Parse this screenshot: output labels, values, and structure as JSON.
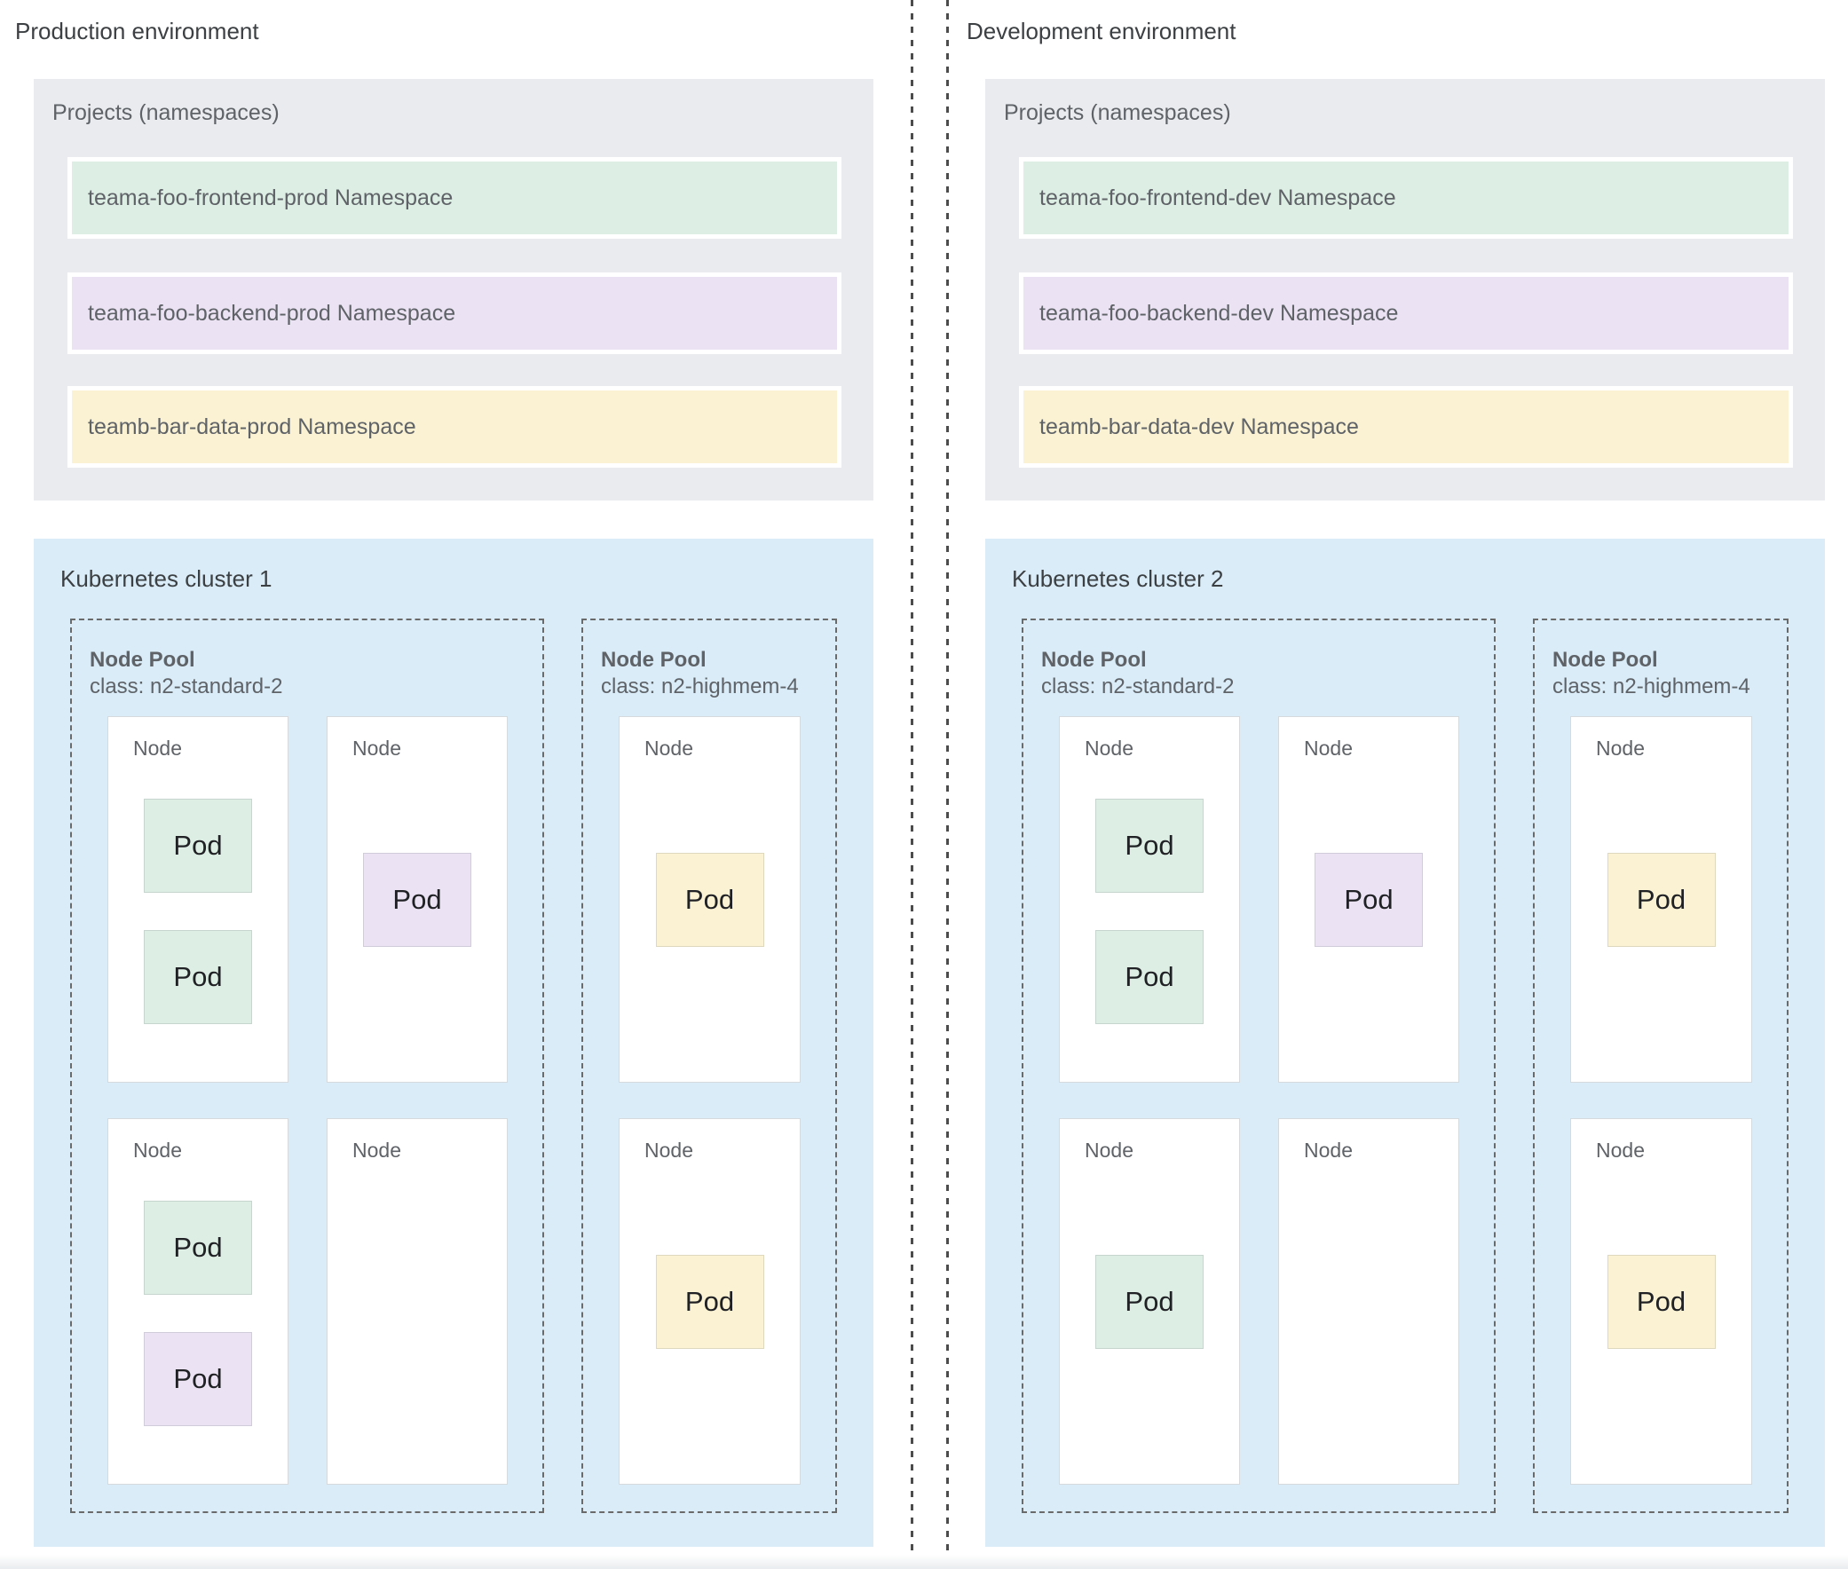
{
  "colors": {
    "projects_box": "#e9ebee",
    "cluster_box": "#d9ecf8",
    "namespace_green": "#ddeee4",
    "namespace_purple": "#ebe3f3",
    "namespace_yellow": "#faf2d2",
    "label_text": "#5f6368",
    "title_text": "#3c4043"
  },
  "environments": [
    {
      "title": "Production environment",
      "projects": {
        "title": "Projects (namespaces)",
        "namespaces": [
          {
            "label": "teama-foo-frontend-prod Namespace",
            "color": "green"
          },
          {
            "label": "teama-foo-backend-prod Namespace",
            "color": "purple"
          },
          {
            "label": "teamb-bar-data-prod Namespace",
            "color": "yellow"
          }
        ]
      },
      "cluster": {
        "title": "Kubernetes cluster 1",
        "node_pools": [
          {
            "name": "Node Pool",
            "class_line": "class: n2-standard-2",
            "nodes": [
              {
                "label": "Node",
                "pods": [
                  {
                    "label": "Pod",
                    "color": "green"
                  },
                  {
                    "label": "Pod",
                    "color": "green"
                  }
                ]
              },
              {
                "label": "Node",
                "pods": [
                  {
                    "label": "Pod",
                    "color": "purple"
                  }
                ]
              },
              {
                "label": "Node",
                "pods": [
                  {
                    "label": "Pod",
                    "color": "green"
                  },
                  {
                    "label": "Pod",
                    "color": "purple"
                  }
                ]
              },
              {
                "label": "Node",
                "pods": []
              }
            ]
          },
          {
            "name": "Node Pool",
            "class_line": "class: n2-highmem-4",
            "nodes": [
              {
                "label": "Node",
                "pods": [
                  {
                    "label": "Pod",
                    "color": "yellow"
                  }
                ]
              },
              {
                "label": "Node",
                "pods": [
                  {
                    "label": "Pod",
                    "color": "yellow"
                  }
                ]
              }
            ]
          }
        ]
      }
    },
    {
      "title": "Development environment",
      "projects": {
        "title": "Projects (namespaces)",
        "namespaces": [
          {
            "label": "teama-foo-frontend-dev Namespace",
            "color": "green"
          },
          {
            "label": "teama-foo-backend-dev Namespace",
            "color": "purple"
          },
          {
            "label": "teamb-bar-data-dev Namespace",
            "color": "yellow"
          }
        ]
      },
      "cluster": {
        "title": "Kubernetes cluster 2",
        "node_pools": [
          {
            "name": "Node Pool",
            "class_line": "class: n2-standard-2",
            "nodes": [
              {
                "label": "Node",
                "pods": [
                  {
                    "label": "Pod",
                    "color": "green"
                  },
                  {
                    "label": "Pod",
                    "color": "green"
                  }
                ]
              },
              {
                "label": "Node",
                "pods": [
                  {
                    "label": "Pod",
                    "color": "purple"
                  }
                ]
              },
              {
                "label": "Node",
                "pods": [
                  {
                    "label": "Pod",
                    "color": "green"
                  }
                ]
              },
              {
                "label": "Node",
                "pods": []
              }
            ]
          },
          {
            "name": "Node Pool",
            "class_line": "class: n2-highmem-4",
            "nodes": [
              {
                "label": "Node",
                "pods": [
                  {
                    "label": "Pod",
                    "color": "yellow"
                  }
                ]
              },
              {
                "label": "Node",
                "pods": [
                  {
                    "label": "Pod",
                    "color": "yellow"
                  }
                ]
              }
            ]
          }
        ]
      }
    }
  ]
}
